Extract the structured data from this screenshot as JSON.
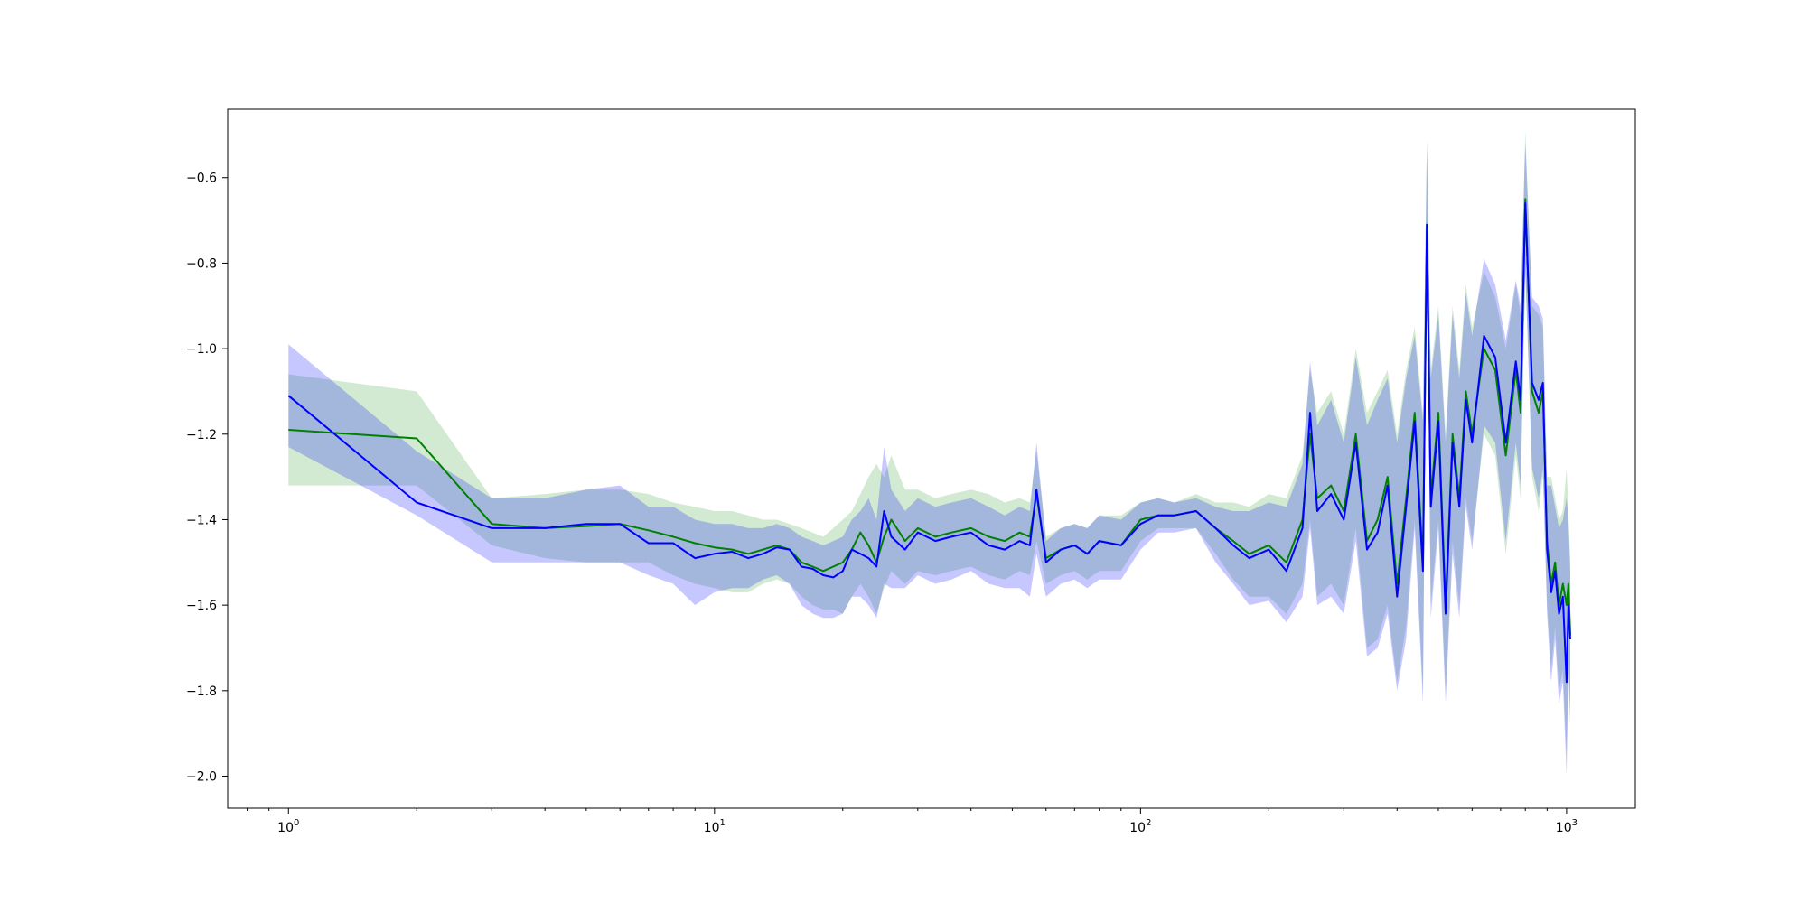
{
  "chart_data": {
    "type": "line",
    "title": "",
    "xlabel": "",
    "ylabel": "",
    "xscale": "log",
    "xlim": [
      0.72,
      1450
    ],
    "ylim": [
      -2.075,
      -0.44
    ],
    "grid": false,
    "legend": "none",
    "x_ticks": [
      {
        "value": 1,
        "base": "10",
        "exp": "0"
      },
      {
        "value": 10,
        "base": "10",
        "exp": "1"
      },
      {
        "value": 100,
        "base": "10",
        "exp": "2"
      },
      {
        "value": 1000,
        "base": "10",
        "exp": "3"
      }
    ],
    "y_ticks": [
      {
        "value": -0.6,
        "label": "−0.6"
      },
      {
        "value": -0.8,
        "label": "−0.8"
      },
      {
        "value": -1.0,
        "label": "−1.0"
      },
      {
        "value": -1.2,
        "label": "−1.2"
      },
      {
        "value": -1.4,
        "label": "−1.4"
      },
      {
        "value": -1.6,
        "label": "−1.6"
      },
      {
        "value": -1.8,
        "label": "−1.8"
      },
      {
        "value": -2.0,
        "label": "−2.0"
      }
    ],
    "series": [
      {
        "color": "#008000",
        "band_color": "#2ca02c",
        "x": [
          1,
          2,
          3,
          4,
          5,
          6,
          7,
          8,
          9,
          10,
          11,
          12,
          13,
          14,
          15,
          16,
          17,
          18,
          19,
          20,
          21,
          22,
          23,
          24,
          25,
          26,
          28,
          30,
          33,
          36,
          40,
          44,
          48,
          52,
          55,
          57,
          60,
          65,
          70,
          75,
          80,
          90,
          100,
          110,
          120,
          135,
          150,
          165,
          180,
          200,
          220,
          240,
          250,
          260,
          280,
          300,
          320,
          340,
          360,
          380,
          400,
          420,
          440,
          460,
          470,
          480,
          500,
          520,
          540,
          560,
          580,
          600,
          640,
          680,
          720,
          760,
          780,
          800,
          830,
          860,
          880,
          900,
          920,
          940,
          960,
          980,
          1000,
          1010,
          1020
        ],
        "y": [
          -1.19,
          -1.21,
          -1.41,
          -1.42,
          -1.415,
          -1.41,
          -1.425,
          -1.44,
          -1.455,
          -1.465,
          -1.47,
          -1.48,
          -1.47,
          -1.46,
          -1.47,
          -1.5,
          -1.51,
          -1.52,
          -1.51,
          -1.5,
          -1.47,
          -1.43,
          -1.46,
          -1.5,
          -1.44,
          -1.4,
          -1.45,
          -1.42,
          -1.44,
          -1.43,
          -1.42,
          -1.44,
          -1.45,
          -1.43,
          -1.44,
          -1.34,
          -1.49,
          -1.47,
          -1.46,
          -1.48,
          -1.45,
          -1.46,
          -1.4,
          -1.39,
          -1.39,
          -1.38,
          -1.42,
          -1.45,
          -1.48,
          -1.46,
          -1.5,
          -1.4,
          -1.2,
          -1.35,
          -1.32,
          -1.38,
          -1.2,
          -1.45,
          -1.4,
          -1.3,
          -1.55,
          -1.35,
          -1.15,
          -1.5,
          -0.71,
          -1.35,
          -1.15,
          -1.6,
          -1.2,
          -1.35,
          -1.1,
          -1.2,
          -1.0,
          -1.05,
          -1.25,
          -1.05,
          -1.15,
          -0.65,
          -1.1,
          -1.15,
          -1.1,
          -1.45,
          -1.55,
          -1.5,
          -1.6,
          -1.55,
          -1.6,
          -1.55,
          -1.67
        ],
        "upper": [
          -1.06,
          -1.1,
          -1.35,
          -1.34,
          -1.33,
          -1.33,
          -1.34,
          -1.36,
          -1.37,
          -1.38,
          -1.38,
          -1.39,
          -1.4,
          -1.4,
          -1.41,
          -1.42,
          -1.43,
          -1.44,
          -1.42,
          -1.4,
          -1.38,
          -1.34,
          -1.3,
          -1.27,
          -1.3,
          -1.25,
          -1.33,
          -1.33,
          -1.35,
          -1.34,
          -1.33,
          -1.34,
          -1.36,
          -1.35,
          -1.36,
          -1.24,
          -1.44,
          -1.42,
          -1.41,
          -1.42,
          -1.39,
          -1.39,
          -1.36,
          -1.35,
          -1.36,
          -1.34,
          -1.36,
          -1.36,
          -1.37,
          -1.34,
          -1.35,
          -1.25,
          -1.05,
          -1.15,
          -1.1,
          -1.2,
          -1.0,
          -1.15,
          -1.1,
          -1.05,
          -1.2,
          -1.05,
          -0.95,
          -1.15,
          -0.51,
          -1.05,
          -0.9,
          -1.2,
          -0.9,
          -1.05,
          -0.85,
          -0.95,
          -0.82,
          -0.88,
          -1.0,
          -0.85,
          -0.92,
          -0.49,
          -0.9,
          -0.92,
          -0.95,
          -1.3,
          -1.3,
          -1.35,
          -1.4,
          -1.38,
          -1.28,
          -1.38,
          -1.5
        ],
        "lower": [
          -1.32,
          -1.32,
          -1.46,
          -1.49,
          -1.5,
          -1.5,
          -1.5,
          -1.53,
          -1.55,
          -1.56,
          -1.57,
          -1.57,
          -1.55,
          -1.54,
          -1.55,
          -1.58,
          -1.6,
          -1.61,
          -1.61,
          -1.62,
          -1.58,
          -1.55,
          -1.58,
          -1.62,
          -1.56,
          -1.52,
          -1.55,
          -1.52,
          -1.53,
          -1.52,
          -1.51,
          -1.53,
          -1.54,
          -1.52,
          -1.53,
          -1.45,
          -1.55,
          -1.53,
          -1.52,
          -1.54,
          -1.52,
          -1.52,
          -1.45,
          -1.42,
          -1.42,
          -1.42,
          -1.48,
          -1.54,
          -1.58,
          -1.58,
          -1.62,
          -1.55,
          -1.4,
          -1.58,
          -1.55,
          -1.6,
          -1.42,
          -1.7,
          -1.68,
          -1.6,
          -1.78,
          -1.65,
          -1.4,
          -1.8,
          -0.73,
          -1.6,
          -1.4,
          -1.8,
          -1.45,
          -1.6,
          -1.35,
          -1.45,
          -1.2,
          -1.25,
          -1.48,
          -1.25,
          -1.35,
          -0.8,
          -1.3,
          -1.38,
          -1.3,
          -1.6,
          -1.75,
          -1.65,
          -1.8,
          -1.75,
          -1.95,
          -1.72,
          -1.85
        ]
      },
      {
        "color": "#0000ff",
        "band_color": "#0000ff",
        "x": [
          1,
          2,
          3,
          4,
          5,
          6,
          7,
          8,
          9,
          10,
          11,
          12,
          13,
          14,
          15,
          16,
          17,
          18,
          19,
          20,
          21,
          22,
          23,
          24,
          25,
          26,
          28,
          30,
          33,
          36,
          40,
          44,
          48,
          52,
          55,
          57,
          60,
          65,
          70,
          75,
          80,
          90,
          100,
          110,
          120,
          135,
          150,
          165,
          180,
          200,
          220,
          240,
          250,
          260,
          280,
          300,
          320,
          340,
          360,
          380,
          400,
          420,
          440,
          460,
          470,
          480,
          500,
          520,
          540,
          560,
          580,
          600,
          640,
          680,
          720,
          760,
          780,
          800,
          830,
          860,
          880,
          900,
          920,
          940,
          960,
          980,
          1000,
          1010,
          1020
        ],
        "y": [
          -1.11,
          -1.36,
          -1.42,
          -1.42,
          -1.41,
          -1.41,
          -1.455,
          -1.455,
          -1.49,
          -1.48,
          -1.475,
          -1.49,
          -1.48,
          -1.465,
          -1.47,
          -1.51,
          -1.515,
          -1.53,
          -1.535,
          -1.52,
          -1.47,
          -1.48,
          -1.49,
          -1.51,
          -1.38,
          -1.44,
          -1.47,
          -1.43,
          -1.45,
          -1.44,
          -1.43,
          -1.46,
          -1.47,
          -1.45,
          -1.46,
          -1.33,
          -1.5,
          -1.47,
          -1.46,
          -1.48,
          -1.45,
          -1.46,
          -1.41,
          -1.39,
          -1.39,
          -1.38,
          -1.42,
          -1.46,
          -1.49,
          -1.47,
          -1.52,
          -1.42,
          -1.15,
          -1.38,
          -1.34,
          -1.4,
          -1.22,
          -1.47,
          -1.43,
          -1.32,
          -1.58,
          -1.37,
          -1.17,
          -1.52,
          -0.71,
          -1.37,
          -1.17,
          -1.62,
          -1.22,
          -1.37,
          -1.12,
          -1.22,
          -0.97,
          -1.02,
          -1.22,
          -1.03,
          -1.12,
          -0.66,
          -1.08,
          -1.12,
          -1.08,
          -1.47,
          -1.57,
          -1.52,
          -1.62,
          -1.58,
          -1.78,
          -1.6,
          -1.68
        ],
        "upper": [
          -0.99,
          -1.24,
          -1.35,
          -1.35,
          -1.33,
          -1.32,
          -1.37,
          -1.37,
          -1.4,
          -1.41,
          -1.41,
          -1.42,
          -1.42,
          -1.41,
          -1.42,
          -1.44,
          -1.45,
          -1.46,
          -1.45,
          -1.44,
          -1.4,
          -1.38,
          -1.35,
          -1.4,
          -1.23,
          -1.33,
          -1.38,
          -1.35,
          -1.37,
          -1.36,
          -1.35,
          -1.37,
          -1.39,
          -1.37,
          -1.38,
          -1.22,
          -1.45,
          -1.42,
          -1.41,
          -1.42,
          -1.39,
          -1.4,
          -1.36,
          -1.35,
          -1.36,
          -1.35,
          -1.37,
          -1.38,
          -1.38,
          -1.36,
          -1.37,
          -1.27,
          -1.03,
          -1.18,
          -1.12,
          -1.22,
          -1.02,
          -1.18,
          -1.12,
          -1.07,
          -1.22,
          -1.07,
          -0.97,
          -1.17,
          -0.52,
          -1.07,
          -0.92,
          -1.22,
          -0.92,
          -1.07,
          -0.87,
          -0.97,
          -0.79,
          -0.85,
          -0.98,
          -0.84,
          -0.9,
          -0.52,
          -0.88,
          -0.9,
          -0.93,
          -1.32,
          -1.32,
          -1.37,
          -1.42,
          -1.4,
          -1.35,
          -1.4,
          -1.52
        ],
        "lower": [
          -1.23,
          -1.39,
          -1.5,
          -1.5,
          -1.5,
          -1.5,
          -1.53,
          -1.55,
          -1.6,
          -1.57,
          -1.56,
          -1.56,
          -1.54,
          -1.53,
          -1.55,
          -1.6,
          -1.62,
          -1.63,
          -1.63,
          -1.62,
          -1.58,
          -1.58,
          -1.6,
          -1.63,
          -1.55,
          -1.56,
          -1.56,
          -1.53,
          -1.55,
          -1.54,
          -1.52,
          -1.55,
          -1.56,
          -1.56,
          -1.58,
          -1.48,
          -1.58,
          -1.55,
          -1.54,
          -1.56,
          -1.54,
          -1.54,
          -1.47,
          -1.43,
          -1.43,
          -1.42,
          -1.5,
          -1.55,
          -1.6,
          -1.59,
          -1.64,
          -1.58,
          -1.42,
          -1.6,
          -1.58,
          -1.62,
          -1.45,
          -1.72,
          -1.7,
          -1.62,
          -1.8,
          -1.68,
          -1.42,
          -1.83,
          -0.73,
          -1.63,
          -1.42,
          -1.83,
          -1.48,
          -1.63,
          -1.37,
          -1.47,
          -1.18,
          -1.22,
          -1.45,
          -1.22,
          -1.32,
          -0.82,
          -1.28,
          -1.35,
          -1.28,
          -1.62,
          -1.78,
          -1.68,
          -1.83,
          -1.78,
          -2.0,
          -1.75,
          -1.88
        ]
      }
    ]
  }
}
